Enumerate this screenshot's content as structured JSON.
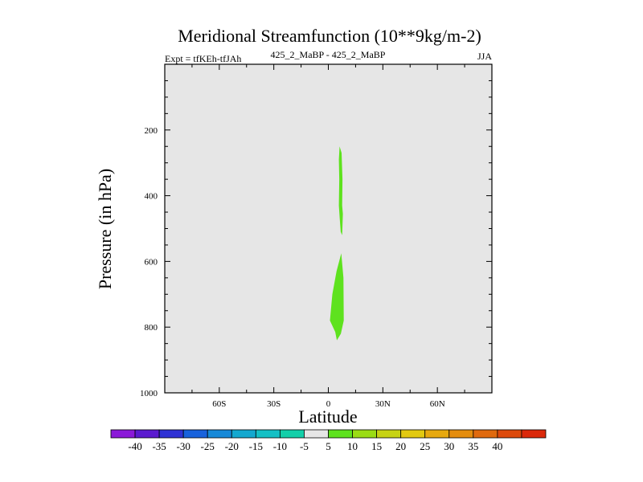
{
  "chart_data": {
    "type": "contour",
    "title": "Meridional Streamfunction (10**9kg/m-2)",
    "left_label": "Expt = tfKEh-tfJAh",
    "center_label": "425_2_MaBP - 425_2_MaBP",
    "right_label": "JJA",
    "xlabel": "Latitude",
    "ylabel": "Pressure (in hPa)",
    "xlim": [
      -90,
      90
    ],
    "ylim": [
      1000,
      0
    ],
    "y_reversed": true,
    "x_ticks": [
      {
        "value": -60,
        "label": "60S"
      },
      {
        "value": -30,
        "label": "30S"
      },
      {
        "value": 0,
        "label": "0"
      },
      {
        "value": 30,
        "label": "30N"
      },
      {
        "value": 60,
        "label": "60N"
      }
    ],
    "y_ticks": [
      {
        "value": 200,
        "label": "200"
      },
      {
        "value": 400,
        "label": "400"
      },
      {
        "value": 600,
        "label": "600"
      },
      {
        "value": 800,
        "label": "800"
      },
      {
        "value": 1000,
        "label": "1000"
      }
    ],
    "background_color": "#e6e6e6",
    "filled_regions": [
      {
        "level": "5 to 10",
        "color": "#5ee21e",
        "points": [
          [
            6.2,
            250
          ],
          [
            7.3,
            270
          ],
          [
            7.8,
            350
          ],
          [
            7.6,
            430
          ],
          [
            8.0,
            455
          ],
          [
            7.6,
            520
          ],
          [
            6.8,
            510
          ],
          [
            6.3,
            470
          ],
          [
            5.8,
            430
          ],
          [
            6.0,
            350
          ],
          [
            5.8,
            290
          ],
          [
            6.2,
            250
          ]
        ]
      },
      {
        "level": "5 to 10",
        "color": "#5ee21e",
        "points": [
          [
            7.1,
            575
          ],
          [
            8.3,
            650
          ],
          [
            8.5,
            780
          ],
          [
            6.9,
            820
          ],
          [
            4.7,
            840
          ],
          [
            3.8,
            815
          ],
          [
            0.9,
            780
          ],
          [
            2.2,
            700
          ],
          [
            4.5,
            630
          ],
          [
            7.1,
            575
          ]
        ]
      }
    ],
    "colorbar": {
      "colors": [
        "#8b1ad8",
        "#5b1bcf",
        "#2f32d4",
        "#1862dc",
        "#1789d8",
        "#14a8cf",
        "#14c0c5",
        "#13cfa9",
        "#e6e6e6",
        "#5ee21e",
        "#9adc14",
        "#c7d313",
        "#e2c910",
        "#e7a90f",
        "#e48d0e",
        "#e06a0e",
        "#dd4a0c",
        "#db290b"
      ],
      "labels": [
        "-40",
        "-35",
        "-30",
        "-25",
        "-20",
        "-15",
        "-10",
        "-5",
        "5",
        "10",
        "15",
        "20",
        "25",
        "30",
        "35",
        "40"
      ]
    }
  }
}
